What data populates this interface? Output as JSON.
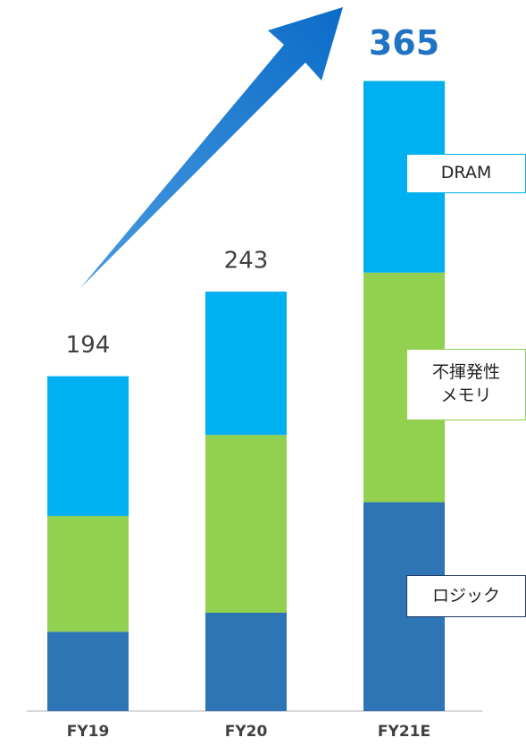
{
  "chart_data": {
    "type": "stacked_bar",
    "categories": [
      "FY19",
      "FY20",
      "FY21E"
    ],
    "series": [
      {
        "name": "ロジック",
        "color": "#2e75b6",
        "values": [
          46,
          57,
          121
        ]
      },
      {
        "name": "不揮発性メモリ",
        "color": "#92d050",
        "values": [
          67,
          103,
          133
        ]
      },
      {
        "name": "DRAM",
        "color": "#00b0f0",
        "values": [
          81,
          83,
          111
        ]
      }
    ],
    "totals": [
      194,
      243,
      365
    ],
    "ylim": [
      0,
      400
    ]
  }
}
